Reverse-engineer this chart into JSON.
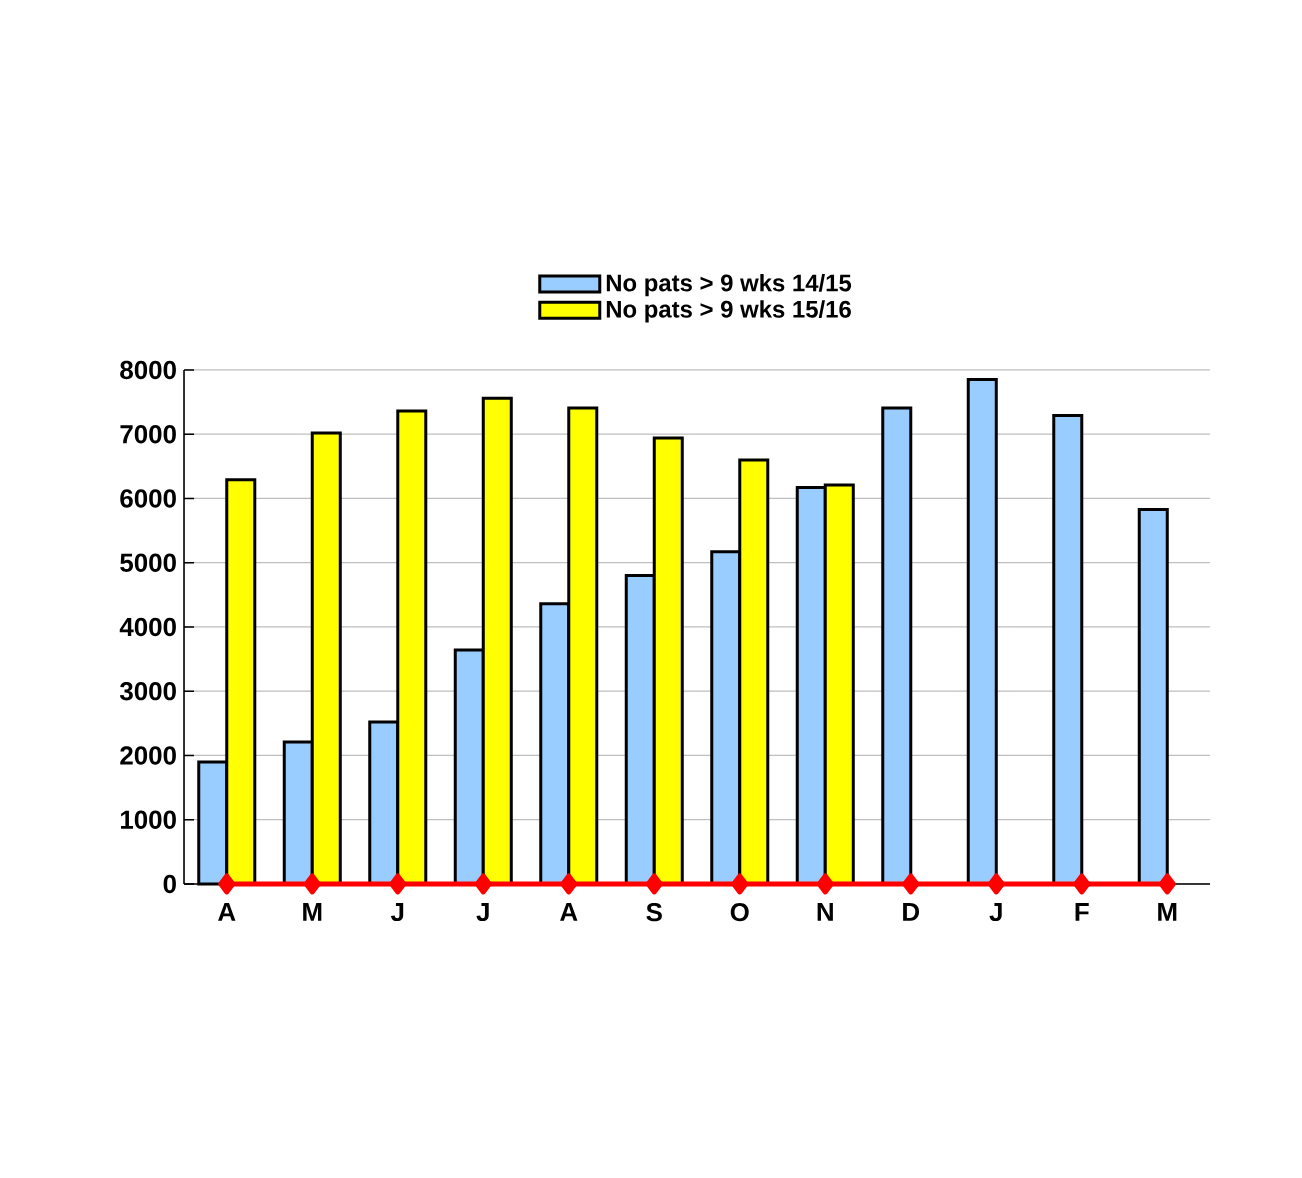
{
  "chart_data": {
    "type": "bar",
    "categories": [
      "A",
      "M",
      "J",
      "J",
      "A",
      "S",
      "O",
      "N",
      "D",
      "J",
      "F",
      "M"
    ],
    "series": [
      {
        "name": "No pats > 9 wks 14/15",
        "color": "#99ccff",
        "values": [
          1900,
          2210,
          2520,
          3640,
          4360,
          4800,
          5170,
          6170,
          7410,
          7850,
          7290,
          5830
        ]
      },
      {
        "name": "No pats > 9 wks 15/16",
        "color": "#ffff00",
        "values": [
          6290,
          7020,
          7360,
          7560,
          7410,
          6940,
          6600,
          6210,
          null,
          null,
          null,
          null
        ]
      },
      {
        "type": "line",
        "color": "#ff0000",
        "marker": "diamond",
        "values": [
          0,
          0,
          0,
          0,
          0,
          0,
          0,
          0,
          0,
          0,
          0,
          0
        ]
      }
    ],
    "ylim": [
      0,
      8000
    ],
    "yticks": [
      0,
      1000,
      2000,
      3000,
      4000,
      5000,
      6000,
      7000,
      8000
    ],
    "grid": "y",
    "legend": "top"
  }
}
